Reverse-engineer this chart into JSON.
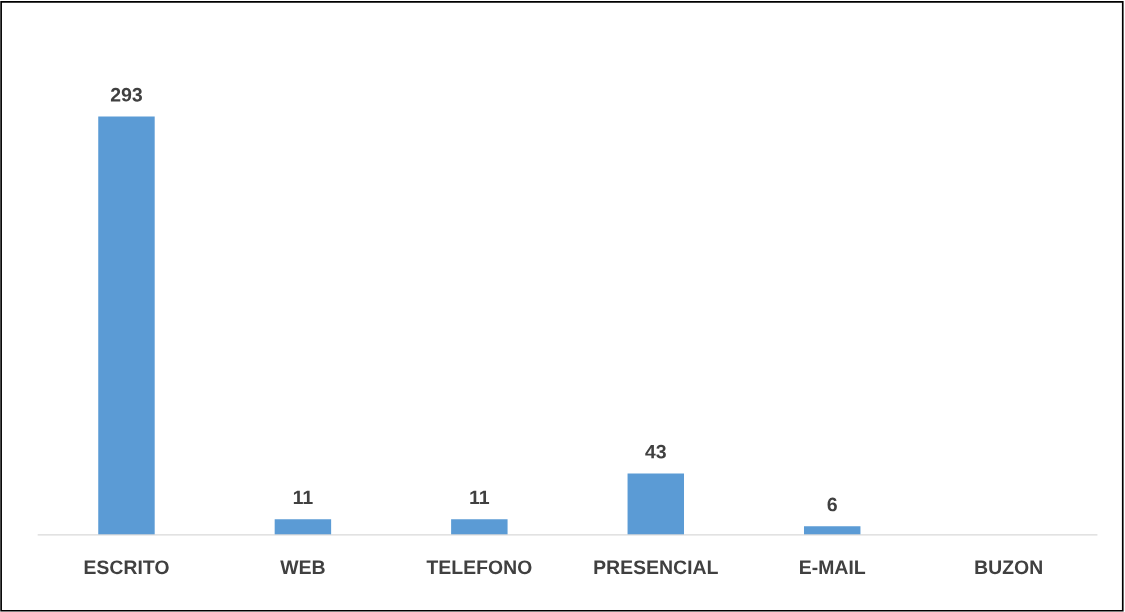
{
  "chart_data": {
    "type": "bar",
    "categories": [
      "ESCRITO",
      "WEB",
      "TELEFONO",
      "PRESENCIAL",
      "E-MAIL",
      "BUZON"
    ],
    "values": [
      293,
      11,
      11,
      43,
      6,
      0
    ],
    "value_labels": [
      "293",
      "11",
      "11",
      "43",
      "6",
      null
    ],
    "color": "#5b9bd5",
    "grid": false,
    "legend": false
  }
}
